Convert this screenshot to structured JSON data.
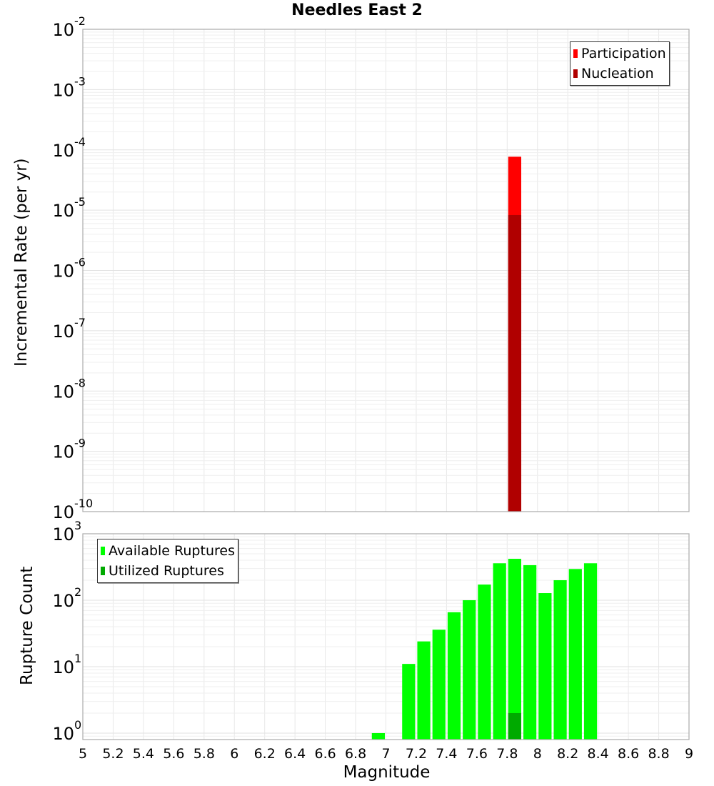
{
  "title": "Needles East 2",
  "colors": {
    "participation": "#ff0000",
    "nucleation": "#b00000",
    "available": "#00ff00",
    "utilized": "#00aa00",
    "grid": "#e8e8e8",
    "axis": "#aaaaaa"
  },
  "top_plot": {
    "ylabel": "Incremental Rate (per yr)",
    "legend": [
      {
        "label": "Participation",
        "color_key": "participation"
      },
      {
        "label": "Nucleation",
        "color_key": "nucleation"
      }
    ]
  },
  "bottom_plot": {
    "ylabel": "Rupture Count",
    "xlabel": "Magnitude",
    "legend": [
      {
        "label": "Available Ruptures",
        "color_key": "available"
      },
      {
        "label": "Utilized Ruptures",
        "color_key": "utilized"
      }
    ]
  },
  "chart_data": [
    {
      "type": "bar",
      "title": "Needles East 2",
      "xlabel": "",
      "ylabel": "Incremental Rate (per yr)",
      "yscale": "log",
      "ylim": [
        1e-10,
        0.01
      ],
      "xlim": [
        5,
        9
      ],
      "ytick_labels": [
        "10^-2",
        "10^-3",
        "10^-4",
        "10^-5",
        "10^-6",
        "10^-7",
        "10^-8",
        "10^-9",
        "10^-10"
      ],
      "grid": true,
      "legend_position": "top-right",
      "series": [
        {
          "name": "Participation",
          "color": "#ff0000",
          "bins": [
            {
              "x0": 7.8,
              "x1": 7.9,
              "value": 7.7e-05
            }
          ]
        },
        {
          "name": "Nucleation",
          "color": "#b00000",
          "bins": [
            {
              "x0": 7.8,
              "x1": 7.9,
              "value": 8.3e-06
            }
          ]
        }
      ]
    },
    {
      "type": "bar",
      "title": "",
      "xlabel": "Magnitude",
      "ylabel": "Rupture Count",
      "yscale": "log",
      "ylim": [
        0.8,
        1000
      ],
      "xlim": [
        5,
        9
      ],
      "xtick_labels": [
        "5",
        "5.2",
        "5.4",
        "5.6",
        "5.8",
        "6",
        "6.2",
        "6.4",
        "6.6",
        "6.8",
        "7",
        "7.2",
        "7.4",
        "7.6",
        "7.8",
        "8",
        "8.2",
        "8.4",
        "8.6",
        "8.8",
        "9"
      ],
      "ytick_labels": [
        "10^0",
        "10^1",
        "10^2",
        "10^3"
      ],
      "grid": true,
      "legend_position": "top-left",
      "categories": [
        "6.9-7.0",
        "7.1-7.2",
        "7.2-7.3",
        "7.3-7.4",
        "7.4-7.5",
        "7.5-7.6",
        "7.6-7.7",
        "7.7-7.8",
        "7.8-7.9",
        "7.9-8.0",
        "8.0-8.1",
        "8.1-8.2",
        "8.2-8.3",
        "8.3-8.4"
      ],
      "series": [
        {
          "name": "Available Ruptures",
          "color": "#00ff00",
          "bins": [
            {
              "x0": 6.9,
              "x1": 7.0,
              "value": 1
            },
            {
              "x0": 7.1,
              "x1": 7.2,
              "value": 11
            },
            {
              "x0": 7.2,
              "x1": 7.3,
              "value": 24
            },
            {
              "x0": 7.3,
              "x1": 7.4,
              "value": 36
            },
            {
              "x0": 7.4,
              "x1": 7.5,
              "value": 66
            },
            {
              "x0": 7.5,
              "x1": 7.6,
              "value": 100
            },
            {
              "x0": 7.6,
              "x1": 7.7,
              "value": 172
            },
            {
              "x0": 7.7,
              "x1": 7.8,
              "value": 360
            },
            {
              "x0": 7.8,
              "x1": 7.9,
              "value": 420
            },
            {
              "x0": 7.9,
              "x1": 8.0,
              "value": 337
            },
            {
              "x0": 8.0,
              "x1": 8.1,
              "value": 128
            },
            {
              "x0": 8.1,
              "x1": 8.2,
              "value": 200
            },
            {
              "x0": 8.2,
              "x1": 8.3,
              "value": 295
            },
            {
              "x0": 8.3,
              "x1": 8.4,
              "value": 360
            }
          ]
        },
        {
          "name": "Utilized Ruptures",
          "color": "#00aa00",
          "bins": [
            {
              "x0": 7.8,
              "x1": 7.9,
              "value": 2
            }
          ]
        }
      ]
    }
  ]
}
